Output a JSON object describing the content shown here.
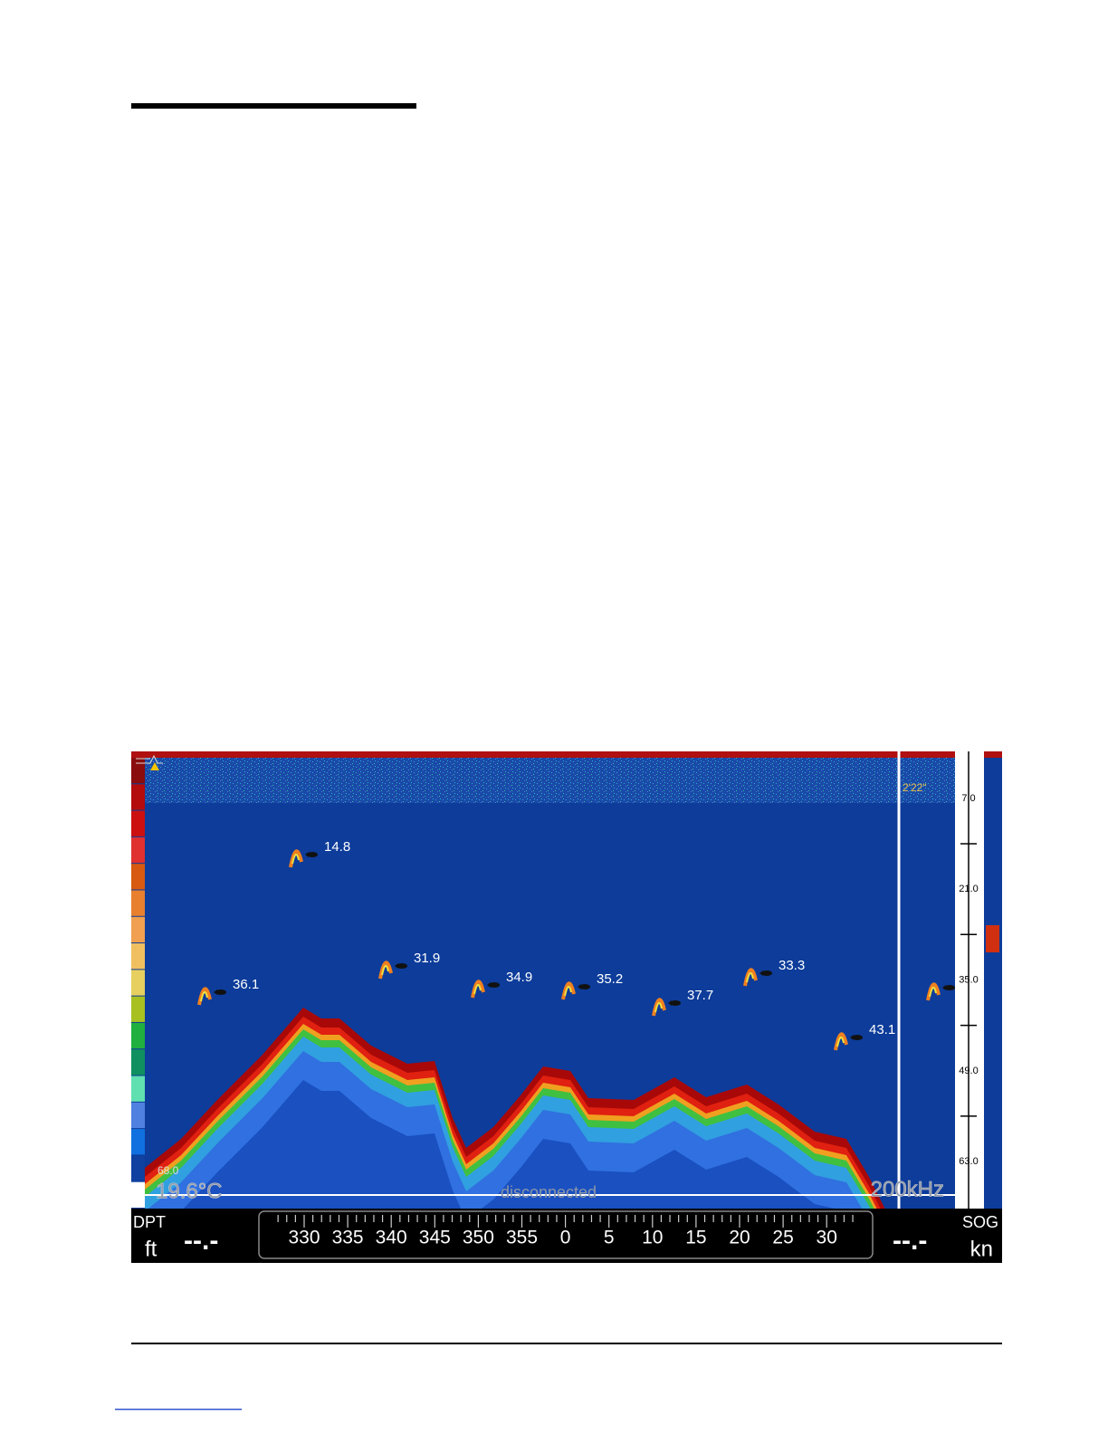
{
  "sonar": {
    "time_marker": "2'22\"",
    "depth_scale": [
      "7.0",
      "21.0",
      "35.0",
      "49.0",
      "63.0"
    ],
    "fish": [
      "14.8",
      "36.1",
      "31.9",
      "34.9",
      "35.2",
      "37.7",
      "33.3",
      "43.1"
    ],
    "range": "68.0",
    "water_temp": "19.6°C",
    "status": "disconnected",
    "frequency": "200kHz"
  },
  "bottom_bar": {
    "left": {
      "label": "DPT",
      "unit": "ft",
      "value": "--.-"
    },
    "heading_scale": [
      "330",
      "335",
      "340",
      "345",
      "350",
      "355",
      "0",
      "5",
      "10",
      "15",
      "20",
      "25",
      "30"
    ],
    "right": {
      "label": "SOG",
      "unit": "kn",
      "value": "--.-"
    }
  }
}
